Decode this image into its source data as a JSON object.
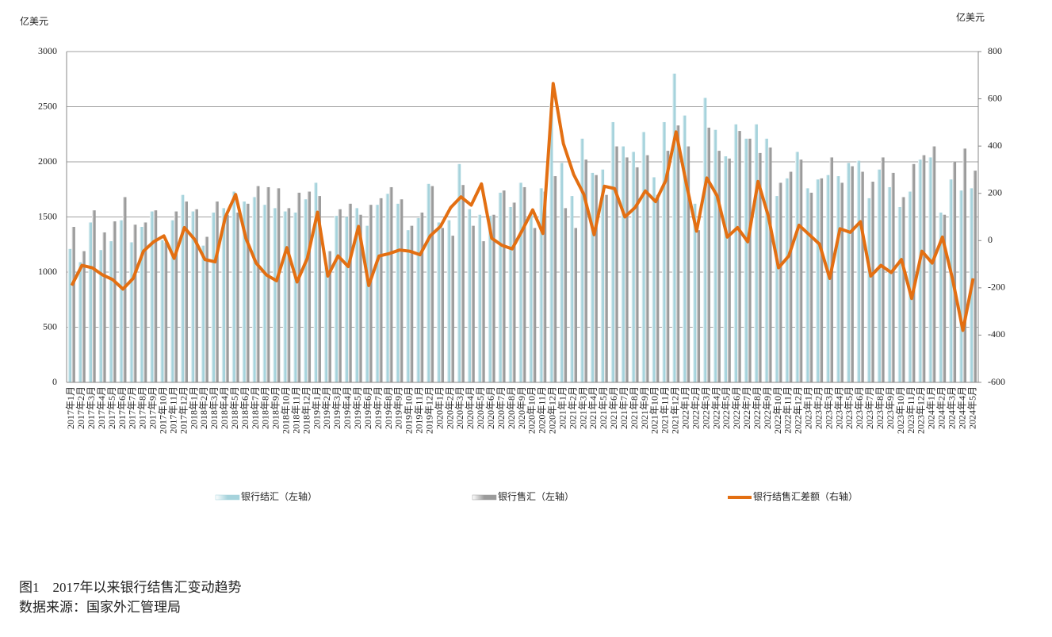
{
  "chart_data": {
    "type": "bar-line",
    "y_label": "亿美元",
    "y2_label": "亿美元",
    "figure_caption": "图1　2017年以来银行结售汇变动趋势",
    "source_note": "数据来源：国家外汇管理局",
    "categories": [
      "2017年1月",
      "2017年2月",
      "2017年3月",
      "2017年4月",
      "2017年5月",
      "2017年6月",
      "2017年7月",
      "2017年8月",
      "2017年9月",
      "2017年10月",
      "2017年11月",
      "2017年12月",
      "2018年1月",
      "2018年2月",
      "2018年3月",
      "2018年4月",
      "2018年5月",
      "2018年6月",
      "2018年7月",
      "2018年8月",
      "2018年9月",
      "2018年10月",
      "2018年11月",
      "2018年12月",
      "2019年1月",
      "2019年2月",
      "2019年3月",
      "2019年4月",
      "2019年5月",
      "2019年6月",
      "2019年7月",
      "2019年8月",
      "2019年9月",
      "2019年10月",
      "2019年11月",
      "2019年12月",
      "2020年1月",
      "2020年2月",
      "2020年3月",
      "2020年4月",
      "2020年5月",
      "2020年6月",
      "2020年7月",
      "2020年8月",
      "2020年9月",
      "2020年10月",
      "2020年11月",
      "2020年12月",
      "2021年1月",
      "2021年2月",
      "2021年3月",
      "2021年4月",
      "2021年5月",
      "2021年6月",
      "2021年7月",
      "2021年8月",
      "2021年9月",
      "2021年10月",
      "2021年11月",
      "2021年12月",
      "2022年1月",
      "2022年2月",
      "2022年3月",
      "2022年4月",
      "2022年5月",
      "2022年6月",
      "2022年7月",
      "2022年8月",
      "2022年9月",
      "2022年10月",
      "2022年11月",
      "2022年12月",
      "2023年1月",
      "2023年2月",
      "2023年3月",
      "2023年4月",
      "2023年5月",
      "2023年6月",
      "2023年7月",
      "2023年8月",
      "2023年9月",
      "2023年10月",
      "2023年11月",
      "2023年12月",
      "2024年1月",
      "2024年2月",
      "2024年3月",
      "2024年4月",
      "2024年5月"
    ],
    "series": [
      {
        "name": "银行结汇（左轴）",
        "kind": "bar",
        "color": "#a6d3dc",
        "values": [
          1210,
          1090,
          1450,
          1200,
          1280,
          1470,
          1270,
          1410,
          1550,
          1290,
          1470,
          1700,
          1550,
          1240,
          1540,
          1580,
          1730,
          1640,
          1680,
          1610,
          1580,
          1550,
          1540,
          1660,
          1810,
          1040,
          1510,
          1500,
          1580,
          1420,
          1610,
          1710,
          1620,
          1380,
          1490,
          1800,
          1450,
          1470,
          1980,
          1570,
          1520,
          1510,
          1720,
          1590,
          1810,
          1540,
          1760,
          2530,
          1990,
          1690,
          2210,
          1900,
          1930,
          2360,
          2140,
          2090,
          2270,
          1860,
          2360,
          2800,
          2420,
          1620,
          2580,
          2290,
          2050,
          2340,
          2210,
          2340,
          2210,
          1690,
          1850,
          2090,
          1760,
          1840,
          1880,
          1870,
          1990,
          2010,
          1670,
          1930,
          1770,
          1590,
          1730,
          2020,
          2040,
          1540,
          1840,
          1740,
          1760
        ]
      },
      {
        "name": "银行售汇（左轴）",
        "kind": "bar",
        "color": "#9b9b9b",
        "values": [
          1410,
          1190,
          1560,
          1360,
          1460,
          1680,
          1430,
          1450,
          1560,
          1270,
          1550,
          1640,
          1570,
          1320,
          1640,
          1520,
          1540,
          1620,
          1780,
          1770,
          1760,
          1580,
          1720,
          1730,
          1690,
          1190,
          1570,
          1620,
          1520,
          1610,
          1670,
          1770,
          1660,
          1420,
          1540,
          1780,
          1400,
          1330,
          1790,
          1420,
          1280,
          1520,
          1740,
          1630,
          1770,
          1400,
          1730,
          1870,
          1580,
          1400,
          2020,
          1880,
          1700,
          2140,
          2040,
          1950,
          2060,
          1700,
          2100,
          2330,
          2140,
          1380,
          2310,
          2100,
          2030,
          2280,
          2210,
          2080,
          2130,
          1810,
          1910,
          2020,
          1720,
          1850,
          2040,
          1810,
          1960,
          1910,
          1820,
          2040,
          1900,
          1680,
          1980,
          2060,
          2140,
          1520,
          2000,
          2120,
          1920
        ]
      },
      {
        "name": "银行结售汇差额（右轴）",
        "kind": "line",
        "axis": "y2",
        "color": "#e36f12",
        "values": [
          -190,
          -105,
          -115,
          -145,
          -165,
          -205,
          -160,
          -45,
          -5,
          20,
          -75,
          55,
          5,
          -80,
          -90,
          100,
          195,
          10,
          -95,
          -145,
          -170,
          -30,
          -175,
          -75,
          120,
          -150,
          -65,
          -110,
          60,
          -190,
          -65,
          -55,
          -40,
          -45,
          -60,
          20,
          60,
          140,
          185,
          150,
          240,
          10,
          -20,
          -35,
          45,
          130,
          30,
          665,
          410,
          280,
          195,
          25,
          230,
          220,
          100,
          140,
          210,
          165,
          255,
          460,
          240,
          40,
          265,
          190,
          15,
          55,
          -5,
          250,
          105,
          -115,
          -65,
          65,
          25,
          -15,
          -160,
          50,
          35,
          80,
          -150,
          -105,
          -135,
          -80,
          -245,
          -45,
          -95,
          15,
          -165,
          -380,
          -160
        ]
      }
    ],
    "ylim": [
      0,
      3000
    ],
    "yticks": [
      0,
      500,
      1000,
      1500,
      2000,
      2500,
      3000
    ],
    "y2lim": [
      -600,
      800
    ],
    "y2ticks": [
      -600,
      -400,
      -200,
      0,
      200,
      400,
      600,
      800
    ],
    "grid": true
  }
}
